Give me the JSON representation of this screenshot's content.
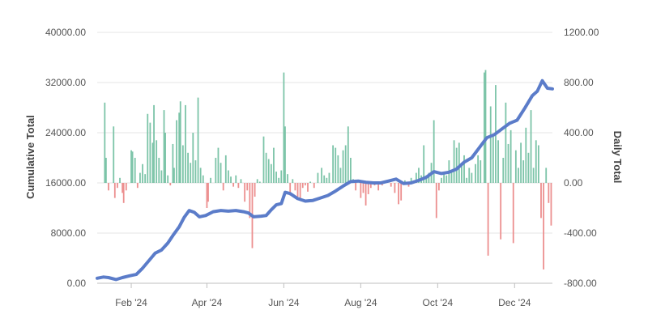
{
  "chart_data": {
    "type": "bar+line",
    "title": "",
    "y_left_label": "Cumulative Total",
    "y_right_label": "Daily Total",
    "y_left_ticks": [
      "0.00",
      "8000.00",
      "16000.00",
      "24000.00",
      "32000.00",
      "40000.00"
    ],
    "y_right_ticks": [
      "-800.00",
      "-400.00",
      "0.00",
      "400.00",
      "800.00",
      "1200.00"
    ],
    "y_left_range": [
      0,
      40000
    ],
    "y_right_range": [
      -800,
      1200
    ],
    "x_range": [
      "2024-01-05",
      "2024-12-31"
    ],
    "x_ticks": [
      {
        "date": "2024-02-01",
        "label": "Feb '24"
      },
      {
        "date": "2024-04-01",
        "label": "Apr '24"
      },
      {
        "date": "2024-06-01",
        "label": "Jun '24"
      },
      {
        "date": "2024-08-01",
        "label": "Aug '24"
      },
      {
        "date": "2024-10-01",
        "label": "Oct '24"
      },
      {
        "date": "2024-12-01",
        "label": "Dec '24"
      }
    ],
    "grid": true,
    "colors": {
      "positive_bar": "#7cc4a8",
      "negative_bar": "#ec8f8f",
      "line": "#5b7cc9"
    },
    "series": [
      {
        "name": "Daily Total",
        "type": "bar",
        "axis": "right",
        "points": [
          [
            "2024-01-11",
            640
          ],
          [
            "2024-01-12",
            200
          ],
          [
            "2024-01-14",
            -60
          ],
          [
            "2024-01-18",
            450
          ],
          [
            "2024-01-19",
            -120
          ],
          [
            "2024-01-21",
            -40
          ],
          [
            "2024-01-23",
            40
          ],
          [
            "2024-01-25",
            -80
          ],
          [
            "2024-01-26",
            -160
          ],
          [
            "2024-01-28",
            -60
          ],
          [
            "2024-02-01",
            260
          ],
          [
            "2024-02-02",
            250
          ],
          [
            "2024-02-04",
            200
          ],
          [
            "2024-02-06",
            -40
          ],
          [
            "2024-02-08",
            80
          ],
          [
            "2024-02-10",
            150
          ],
          [
            "2024-02-12",
            70
          ],
          [
            "2024-02-14",
            550
          ],
          [
            "2024-02-16",
            480
          ],
          [
            "2024-02-18",
            320
          ],
          [
            "2024-02-19",
            620
          ],
          [
            "2024-02-21",
            340
          ],
          [
            "2024-02-23",
            200
          ],
          [
            "2024-02-25",
            100
          ],
          [
            "2024-02-27",
            580
          ],
          [
            "2024-02-28",
            400
          ],
          [
            "2024-03-01",
            60
          ],
          [
            "2024-03-03",
            -20
          ],
          [
            "2024-03-05",
            310
          ],
          [
            "2024-03-06",
            120
          ],
          [
            "2024-03-08",
            500
          ],
          [
            "2024-03-10",
            560
          ],
          [
            "2024-03-11",
            650
          ],
          [
            "2024-03-13",
            300
          ],
          [
            "2024-03-15",
            620
          ],
          [
            "2024-03-17",
            240
          ],
          [
            "2024-03-19",
            160
          ],
          [
            "2024-03-21",
            400
          ],
          [
            "2024-03-23",
            180
          ],
          [
            "2024-03-25",
            680
          ],
          [
            "2024-03-27",
            120
          ],
          [
            "2024-03-29",
            60
          ],
          [
            "2024-04-01",
            -200
          ],
          [
            "2024-04-02",
            -150
          ],
          [
            "2024-04-04",
            40
          ],
          [
            "2024-04-08",
            200
          ],
          [
            "2024-04-10",
            280
          ],
          [
            "2024-04-12",
            160
          ],
          [
            "2024-04-14",
            -60
          ],
          [
            "2024-04-16",
            220
          ],
          [
            "2024-04-18",
            100
          ],
          [
            "2024-04-20",
            50
          ],
          [
            "2024-04-22",
            -30
          ],
          [
            "2024-04-24",
            60
          ],
          [
            "2024-04-26",
            -40
          ],
          [
            "2024-04-28",
            30
          ],
          [
            "2024-05-01",
            -150
          ],
          [
            "2024-05-03",
            -60
          ],
          [
            "2024-05-05",
            -280
          ],
          [
            "2024-05-07",
            -520
          ],
          [
            "2024-05-09",
            -110
          ],
          [
            "2024-05-11",
            30
          ],
          [
            "2024-05-13",
            10
          ],
          [
            "2024-05-16",
            370
          ],
          [
            "2024-05-18",
            240
          ],
          [
            "2024-05-20",
            190
          ],
          [
            "2024-05-22",
            150
          ],
          [
            "2024-05-24",
            280
          ],
          [
            "2024-05-26",
            90
          ],
          [
            "2024-05-28",
            40
          ],
          [
            "2024-05-30",
            100
          ],
          [
            "2024-06-01",
            880
          ],
          [
            "2024-06-02",
            450
          ],
          [
            "2024-06-04",
            70
          ],
          [
            "2024-06-06",
            -100
          ],
          [
            "2024-06-08",
            30
          ],
          [
            "2024-06-10",
            -60
          ],
          [
            "2024-06-12",
            -110
          ],
          [
            "2024-06-14",
            -120
          ],
          [
            "2024-06-16",
            -40
          ],
          [
            "2024-06-18",
            -20
          ],
          [
            "2024-06-20",
            -70
          ],
          [
            "2024-06-22",
            10
          ],
          [
            "2024-06-25",
            -40
          ],
          [
            "2024-06-28",
            80
          ],
          [
            "2024-07-01",
            120
          ],
          [
            "2024-07-03",
            60
          ],
          [
            "2024-07-05",
            40
          ],
          [
            "2024-07-07",
            80
          ],
          [
            "2024-07-10",
            300
          ],
          [
            "2024-07-12",
            280
          ],
          [
            "2024-07-14",
            220
          ],
          [
            "2024-07-16",
            120
          ],
          [
            "2024-07-18",
            260
          ],
          [
            "2024-07-20",
            300
          ],
          [
            "2024-07-22",
            450
          ],
          [
            "2024-07-24",
            200
          ],
          [
            "2024-07-26",
            30
          ],
          [
            "2024-07-28",
            -60
          ],
          [
            "2024-08-01",
            -120
          ],
          [
            "2024-08-03",
            -80
          ],
          [
            "2024-08-05",
            -180
          ],
          [
            "2024-08-07",
            -90
          ],
          [
            "2024-08-09",
            -40
          ],
          [
            "2024-08-12",
            -20
          ],
          [
            "2024-08-15",
            -60
          ],
          [
            "2024-08-18",
            -20
          ],
          [
            "2024-08-22",
            20
          ],
          [
            "2024-08-25",
            -30
          ],
          [
            "2024-08-28",
            -80
          ],
          [
            "2024-08-31",
            -170
          ],
          [
            "2024-09-02",
            -140
          ],
          [
            "2024-09-05",
            20
          ],
          [
            "2024-09-08",
            -30
          ],
          [
            "2024-09-10",
            40
          ],
          [
            "2024-09-12",
            20
          ],
          [
            "2024-09-14",
            80
          ],
          [
            "2024-09-16",
            120
          ],
          [
            "2024-09-18",
            60
          ],
          [
            "2024-09-20",
            300
          ],
          [
            "2024-09-22",
            60
          ],
          [
            "2024-09-24",
            80
          ],
          [
            "2024-09-26",
            160
          ],
          [
            "2024-09-28",
            500
          ],
          [
            "2024-09-30",
            -280
          ],
          [
            "2024-10-02",
            -60
          ],
          [
            "2024-10-04",
            40
          ],
          [
            "2024-10-06",
            80
          ],
          [
            "2024-10-08",
            60
          ],
          [
            "2024-10-10",
            180
          ],
          [
            "2024-10-12",
            100
          ],
          [
            "2024-10-14",
            340
          ],
          [
            "2024-10-16",
            280
          ],
          [
            "2024-10-18",
            320
          ],
          [
            "2024-10-20",
            160
          ],
          [
            "2024-10-22",
            220
          ],
          [
            "2024-10-24",
            40
          ],
          [
            "2024-10-26",
            120
          ],
          [
            "2024-10-28",
            80
          ],
          [
            "2024-10-31",
            150
          ],
          [
            "2024-11-02",
            220
          ],
          [
            "2024-11-04",
            180
          ],
          [
            "2024-11-07",
            880
          ],
          [
            "2024-11-08",
            900
          ],
          [
            "2024-11-10",
            -580
          ],
          [
            "2024-11-12",
            610
          ],
          [
            "2024-11-14",
            380
          ],
          [
            "2024-11-16",
            780
          ],
          [
            "2024-11-18",
            340
          ],
          [
            "2024-11-20",
            -450
          ],
          [
            "2024-11-22",
            200
          ],
          [
            "2024-11-24",
            640
          ],
          [
            "2024-11-26",
            310
          ],
          [
            "2024-11-28",
            420
          ],
          [
            "2024-11-30",
            -480
          ],
          [
            "2024-12-02",
            260
          ],
          [
            "2024-12-04",
            120
          ],
          [
            "2024-12-06",
            320
          ],
          [
            "2024-12-08",
            180
          ],
          [
            "2024-12-10",
            440
          ],
          [
            "2024-12-12",
            240
          ],
          [
            "2024-12-14",
            580
          ],
          [
            "2024-12-16",
            120
          ],
          [
            "2024-12-18",
            340
          ],
          [
            "2024-12-20",
            300
          ],
          [
            "2024-12-22",
            -280
          ],
          [
            "2024-12-24",
            -690
          ],
          [
            "2024-12-26",
            120
          ],
          [
            "2024-12-28",
            -160
          ],
          [
            "2024-12-30",
            -340
          ]
        ]
      },
      {
        "name": "Cumulative Total",
        "type": "line",
        "axis": "left",
        "points": [
          [
            "2024-01-05",
            800
          ],
          [
            "2024-01-10",
            1000
          ],
          [
            "2024-01-14",
            900
          ],
          [
            "2024-01-20",
            600
          ],
          [
            "2024-01-25",
            900
          ],
          [
            "2024-01-31",
            1200
          ],
          [
            "2024-02-05",
            1400
          ],
          [
            "2024-02-10",
            2400
          ],
          [
            "2024-02-15",
            3600
          ],
          [
            "2024-02-20",
            4800
          ],
          [
            "2024-02-25",
            5300
          ],
          [
            "2024-03-01",
            6400
          ],
          [
            "2024-03-05",
            7600
          ],
          [
            "2024-03-10",
            9000
          ],
          [
            "2024-03-14",
            10500
          ],
          [
            "2024-03-18",
            11600
          ],
          [
            "2024-03-22",
            11300
          ],
          [
            "2024-03-26",
            10600
          ],
          [
            "2024-03-31",
            10800
          ],
          [
            "2024-04-06",
            11400
          ],
          [
            "2024-04-12",
            11600
          ],
          [
            "2024-04-18",
            11500
          ],
          [
            "2024-04-24",
            11600
          ],
          [
            "2024-04-30",
            11400
          ],
          [
            "2024-05-04",
            11200
          ],
          [
            "2024-05-08",
            10600
          ],
          [
            "2024-05-14",
            10700
          ],
          [
            "2024-05-18",
            10800
          ],
          [
            "2024-05-22",
            11700
          ],
          [
            "2024-05-26",
            12500
          ],
          [
            "2024-05-30",
            12700
          ],
          [
            "2024-06-02",
            14500
          ],
          [
            "2024-06-06",
            14300
          ],
          [
            "2024-06-12",
            13500
          ],
          [
            "2024-06-18",
            13100
          ],
          [
            "2024-06-24",
            13200
          ],
          [
            "2024-06-30",
            13600
          ],
          [
            "2024-07-06",
            14000
          ],
          [
            "2024-07-12",
            14700
          ],
          [
            "2024-07-18",
            15500
          ],
          [
            "2024-07-24",
            16200
          ],
          [
            "2024-07-30",
            16300
          ],
          [
            "2024-08-05",
            16100
          ],
          [
            "2024-08-11",
            16000
          ],
          [
            "2024-08-17",
            16000
          ],
          [
            "2024-08-23",
            16300
          ],
          [
            "2024-08-29",
            16600
          ],
          [
            "2024-09-04",
            15900
          ],
          [
            "2024-09-10",
            16000
          ],
          [
            "2024-09-16",
            16400
          ],
          [
            "2024-09-22",
            16900
          ],
          [
            "2024-09-28",
            17800
          ],
          [
            "2024-10-04",
            17500
          ],
          [
            "2024-10-10",
            17700
          ],
          [
            "2024-10-16",
            18200
          ],
          [
            "2024-10-22",
            19300
          ],
          [
            "2024-10-28",
            20000
          ],
          [
            "2024-11-03",
            21600
          ],
          [
            "2024-11-09",
            23200
          ],
          [
            "2024-11-15",
            23700
          ],
          [
            "2024-11-21",
            24600
          ],
          [
            "2024-11-27",
            25500
          ],
          [
            "2024-12-03",
            26000
          ],
          [
            "2024-12-09",
            27900
          ],
          [
            "2024-12-15",
            29900
          ],
          [
            "2024-12-19",
            30600
          ],
          [
            "2024-12-23",
            32300
          ],
          [
            "2024-12-27",
            31100
          ],
          [
            "2024-12-31",
            31000
          ]
        ]
      }
    ]
  }
}
